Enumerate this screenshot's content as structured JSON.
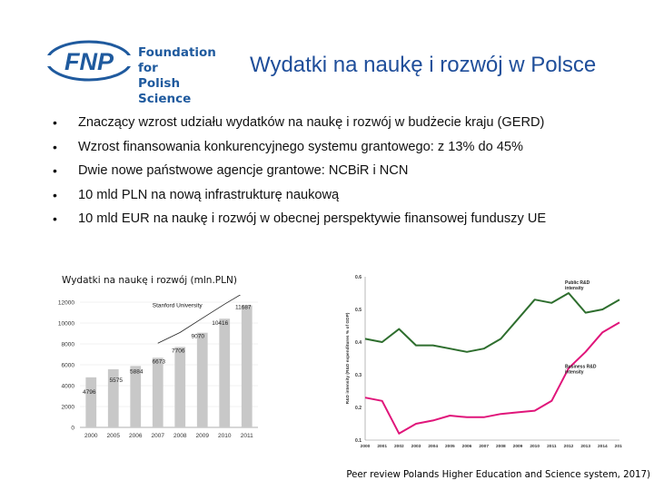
{
  "logo": {
    "abbr": "FNP",
    "line1": "Foundation for",
    "line2": "Polish Science",
    "color": "#1f5a9e"
  },
  "title": "Wydatki na naukę i rozwój w Polsce",
  "bullets": [
    "Znaczący wzrost udziału wydatków na naukę i rozwój w budżecie kraju (GERD)",
    "Wzrost finansowania konkurencyjnego systemu grantowego: z 13% do  45%",
    "Dwie nowe państwowe agencje grantowe: NCBiR i NCN",
    "10 mld PLN na nową infrastrukturę naukową",
    "10 mld EUR na naukę i rozwój w obecnej perspektywie finansowej  funduszy UE"
  ],
  "bullet_symbol": "•",
  "chart_caption": "Wydatki na naukę i rozwój (mln.PLN)",
  "source": "Peer review Polands Higher Education and Science system, 2017)",
  "chart_data": [
    {
      "type": "bar",
      "categories": [
        "2000",
        "2005",
        "2006",
        "2007",
        "2008",
        "2009",
        "2010",
        "2011"
      ],
      "values": [
        4796,
        5575,
        5884,
        6673,
        7706,
        9070,
        10416,
        11687
      ],
      "data_labels": [
        "4796",
        "5575",
        "5884",
        "6673",
        "7706",
        "9070",
        "10416",
        "11687"
      ],
      "ylim": [
        0,
        12000
      ],
      "yticks": [
        0,
        2000,
        4000,
        6000,
        8000,
        10000,
        12000
      ],
      "annotation": "Stanford University",
      "grid": true,
      "bar_color": "#c8c8c8"
    },
    {
      "type": "line",
      "x": [
        "2000",
        "2001",
        "2002",
        "2003",
        "2004",
        "2005",
        "2006",
        "2007",
        "2008",
        "2009",
        "2010",
        "2011",
        "2012",
        "2013",
        "2014",
        "2015"
      ],
      "ylabel": "R&D intensity (R&D expenditures % of GDP)",
      "ylim": [
        0.1,
        0.6
      ],
      "yticks": [
        "0.1",
        "0.2",
        "0.3",
        "0.4",
        "0.5",
        "0.6"
      ],
      "series": [
        {
          "name": "Public R&D intensity",
          "color": "#2e6e2e",
          "values": [
            0.41,
            0.4,
            0.44,
            0.39,
            0.39,
            0.38,
            0.37,
            0.38,
            0.41,
            0.47,
            0.53,
            0.52,
            0.55,
            0.49,
            0.5,
            0.53
          ]
        },
        {
          "name": "Business R&D intensity",
          "color": "#e0157a",
          "values": [
            0.23,
            0.22,
            0.12,
            0.15,
            0.16,
            0.175,
            0.17,
            0.17,
            0.18,
            0.185,
            0.19,
            0.22,
            0.32,
            0.37,
            0.43,
            0.46
          ]
        }
      ],
      "grid": false
    }
  ]
}
